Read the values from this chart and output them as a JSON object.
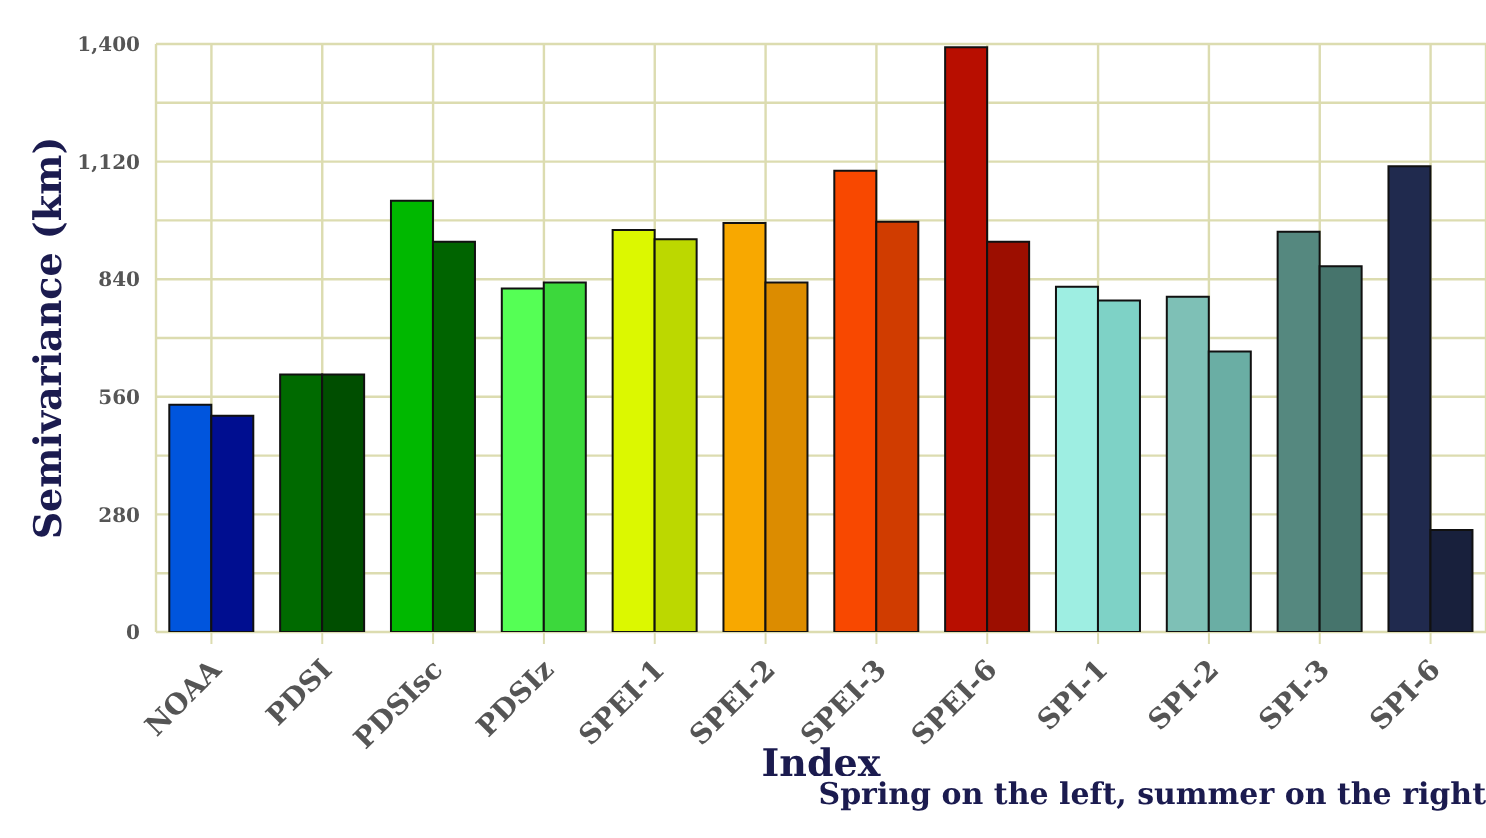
{
  "chart_data": {
    "type": "bar",
    "xlabel": "Index",
    "ylabel": "Semivariance (km)",
    "annotations": [
      "Spring on the left, summer on the right"
    ],
    "categories": [
      "NOAA",
      "PDSI",
      "PDSIsc",
      "PDSIz",
      "SPEI-1",
      "SPEI-2",
      "SPEI-3",
      "SPEI-6",
      "SPI-1",
      "SPI-2",
      "SPI-3",
      "SPI-6"
    ],
    "series": [
      {
        "values": [
          541,
          613,
          1027,
          818,
          957,
          974,
          1098,
          1392,
          822,
          798,
          953,
          1109
        ],
        "colors": [
          "#0055dd",
          "#006a00",
          "#00b800",
          "#55ff55",
          "#dcf800",
          "#f8a800",
          "#f84800",
          "#b80e00",
          "#9eeee2",
          "#7ec0b6",
          "#55887f",
          "#202a4e"
        ]
      },
      {
        "values": [
          515,
          613,
          929,
          832,
          935,
          832,
          977,
          929,
          789,
          668,
          871,
          243
        ],
        "colors": [
          "#000e90",
          "#004e00",
          "#006400",
          "#3cd83c",
          "#bcd800",
          "#dc8c00",
          "#d03c00",
          "#9c0e00",
          "#7ed2c6",
          "#6aaea4",
          "#46746c",
          "#18203c"
        ]
      }
    ],
    "ylim": [
      0,
      1400
    ],
    "yticks": [
      0,
      {
        "value": 140,
        "label": null
      },
      280,
      {
        "value": 420,
        "label": null
      },
      560,
      {
        "value": 700,
        "label": null
      },
      840,
      {
        "value": 980,
        "label": null
      },
      {
        "value": 1120,
        "label": "1,120"
      },
      {
        "value": 1260,
        "label": null
      },
      {
        "value": 1400,
        "label": "1,400"
      }
    ],
    "grid": true
  }
}
